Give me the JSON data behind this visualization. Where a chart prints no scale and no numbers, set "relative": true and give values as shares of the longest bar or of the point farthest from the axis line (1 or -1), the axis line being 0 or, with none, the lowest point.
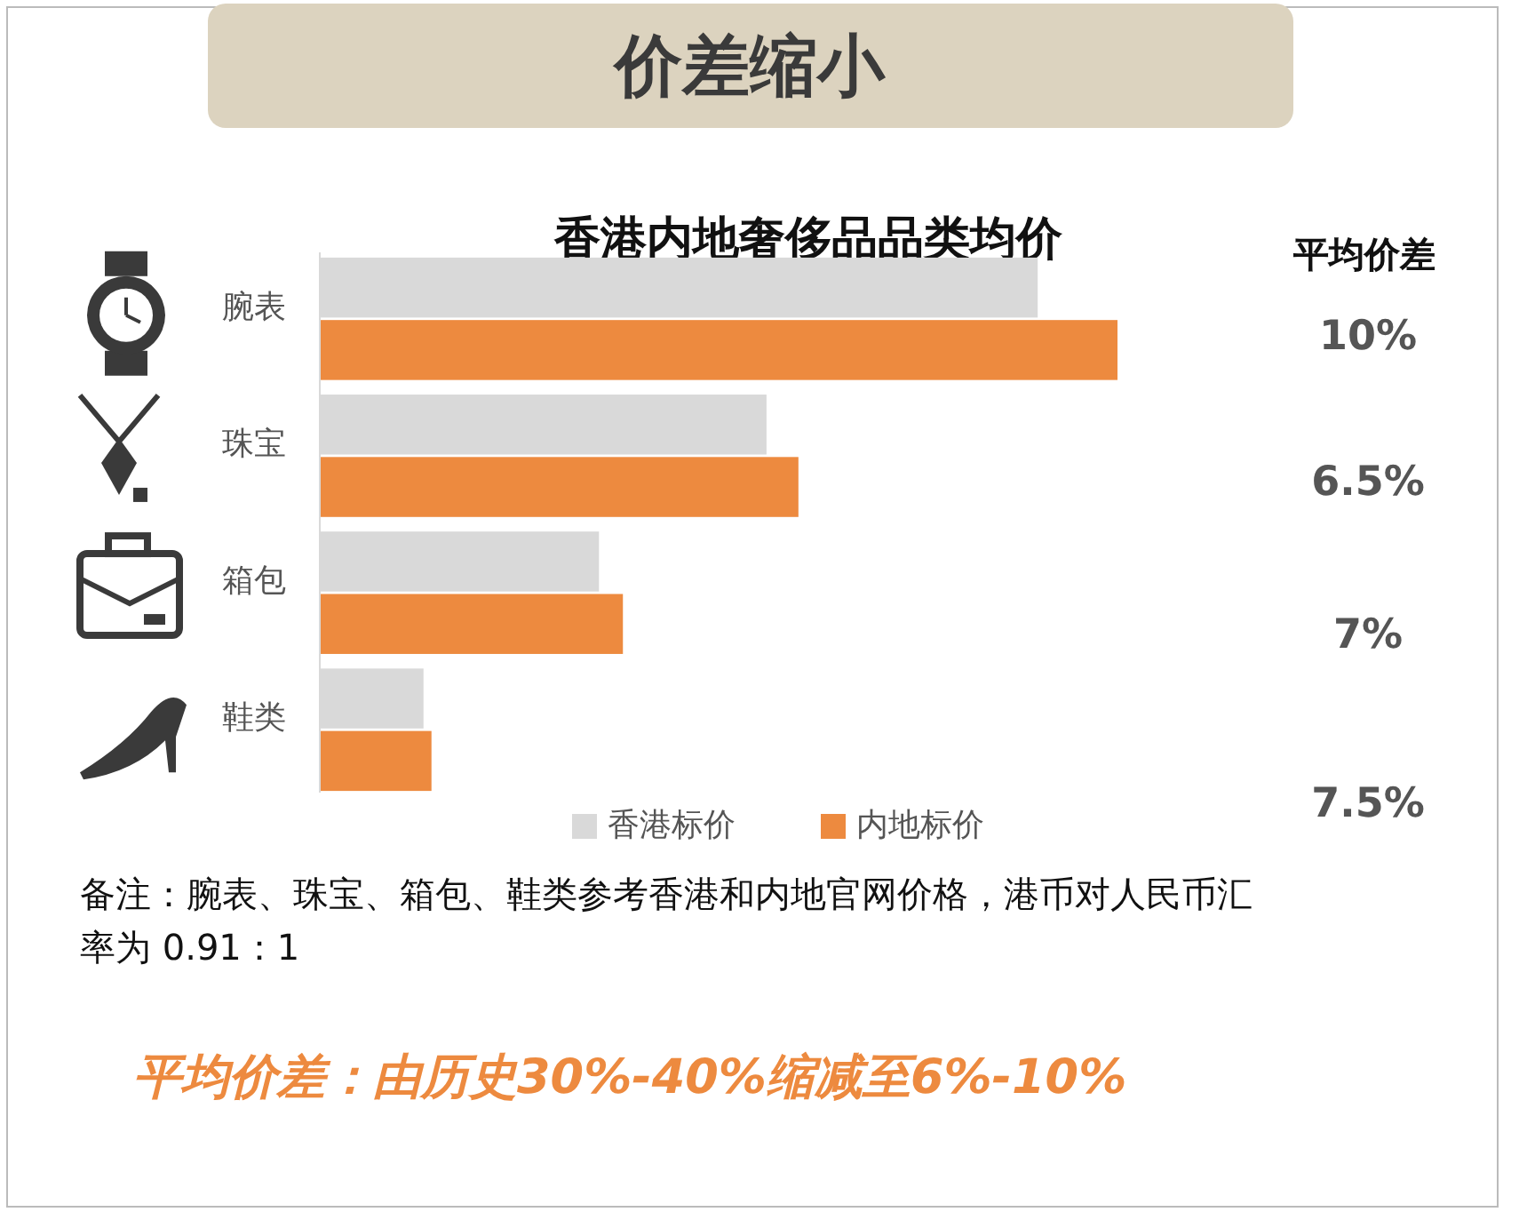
{
  "chart_data": {
    "type": "bar",
    "orientation": "horizontal",
    "relative": true,
    "title": "价差缩小",
    "subtitle": "香港内地奢侈品品类均价",
    "categories": [
      "腕表",
      "珠宝",
      "箱包",
      "鞋类"
    ],
    "series": [
      {
        "name": "香港标价",
        "color": "#d9d9d9",
        "values": [
          0.9,
          0.56,
          0.35,
          0.13
        ]
      },
      {
        "name": "内地标价",
        "color": "#ed8a3f",
        "values": [
          1,
          0.6,
          0.38,
          0.14
        ]
      }
    ],
    "legend": "bottom",
    "annotations": [
      "平均价差",
      "10%",
      "6.5%",
      "7%",
      "7.5%",
      "备注：腕表、珠宝、箱包、鞋类参考香港和内地官网价格，港币对人民币汇率为 0.91：1",
      "平均价差：由历史30%-40%缩减至6%-10%"
    ]
  }
}
